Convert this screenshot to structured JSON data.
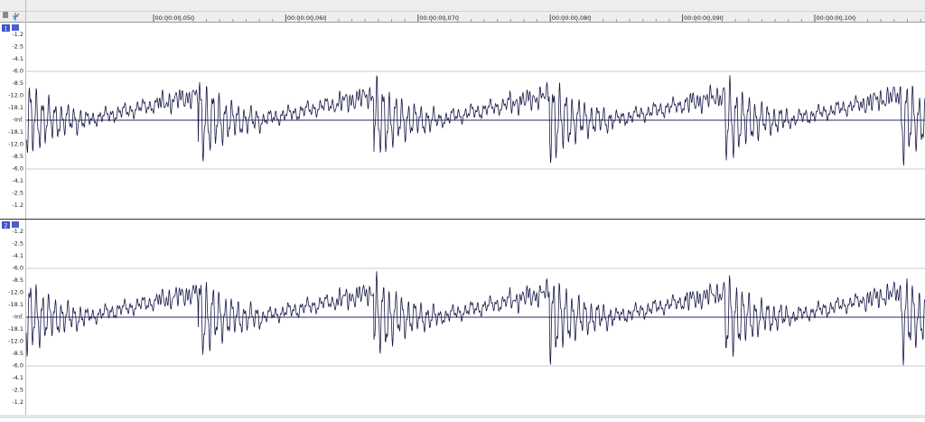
{
  "ruler": {
    "labels": [
      "00:00:00,050",
      "00:00:00,060",
      "00:00:00,070",
      "00:00:00,080",
      "00:00:00,090",
      "00:00:00,100"
    ]
  },
  "channels": [
    {
      "label": "1",
      "scale": [
        "-1.2",
        "-2.5",
        "-4.1",
        "-6.0",
        "-8.5",
        "-12.0",
        "-18.1",
        "-Inf.",
        "-18.1",
        "-12.0",
        "-8.5",
        "-6.0",
        "-4.1",
        "-2.5",
        "-1.2"
      ]
    },
    {
      "label": "2",
      "scale": [
        "-1.2",
        "-2.5",
        "-4.1",
        "-6.0",
        "-8.5",
        "-12.0",
        "-18.1",
        "-Inf.",
        "-18.1",
        "-12.0",
        "-8.5",
        "-6.0",
        "-4.1",
        "-2.5",
        "-1.2"
      ]
    }
  ]
}
